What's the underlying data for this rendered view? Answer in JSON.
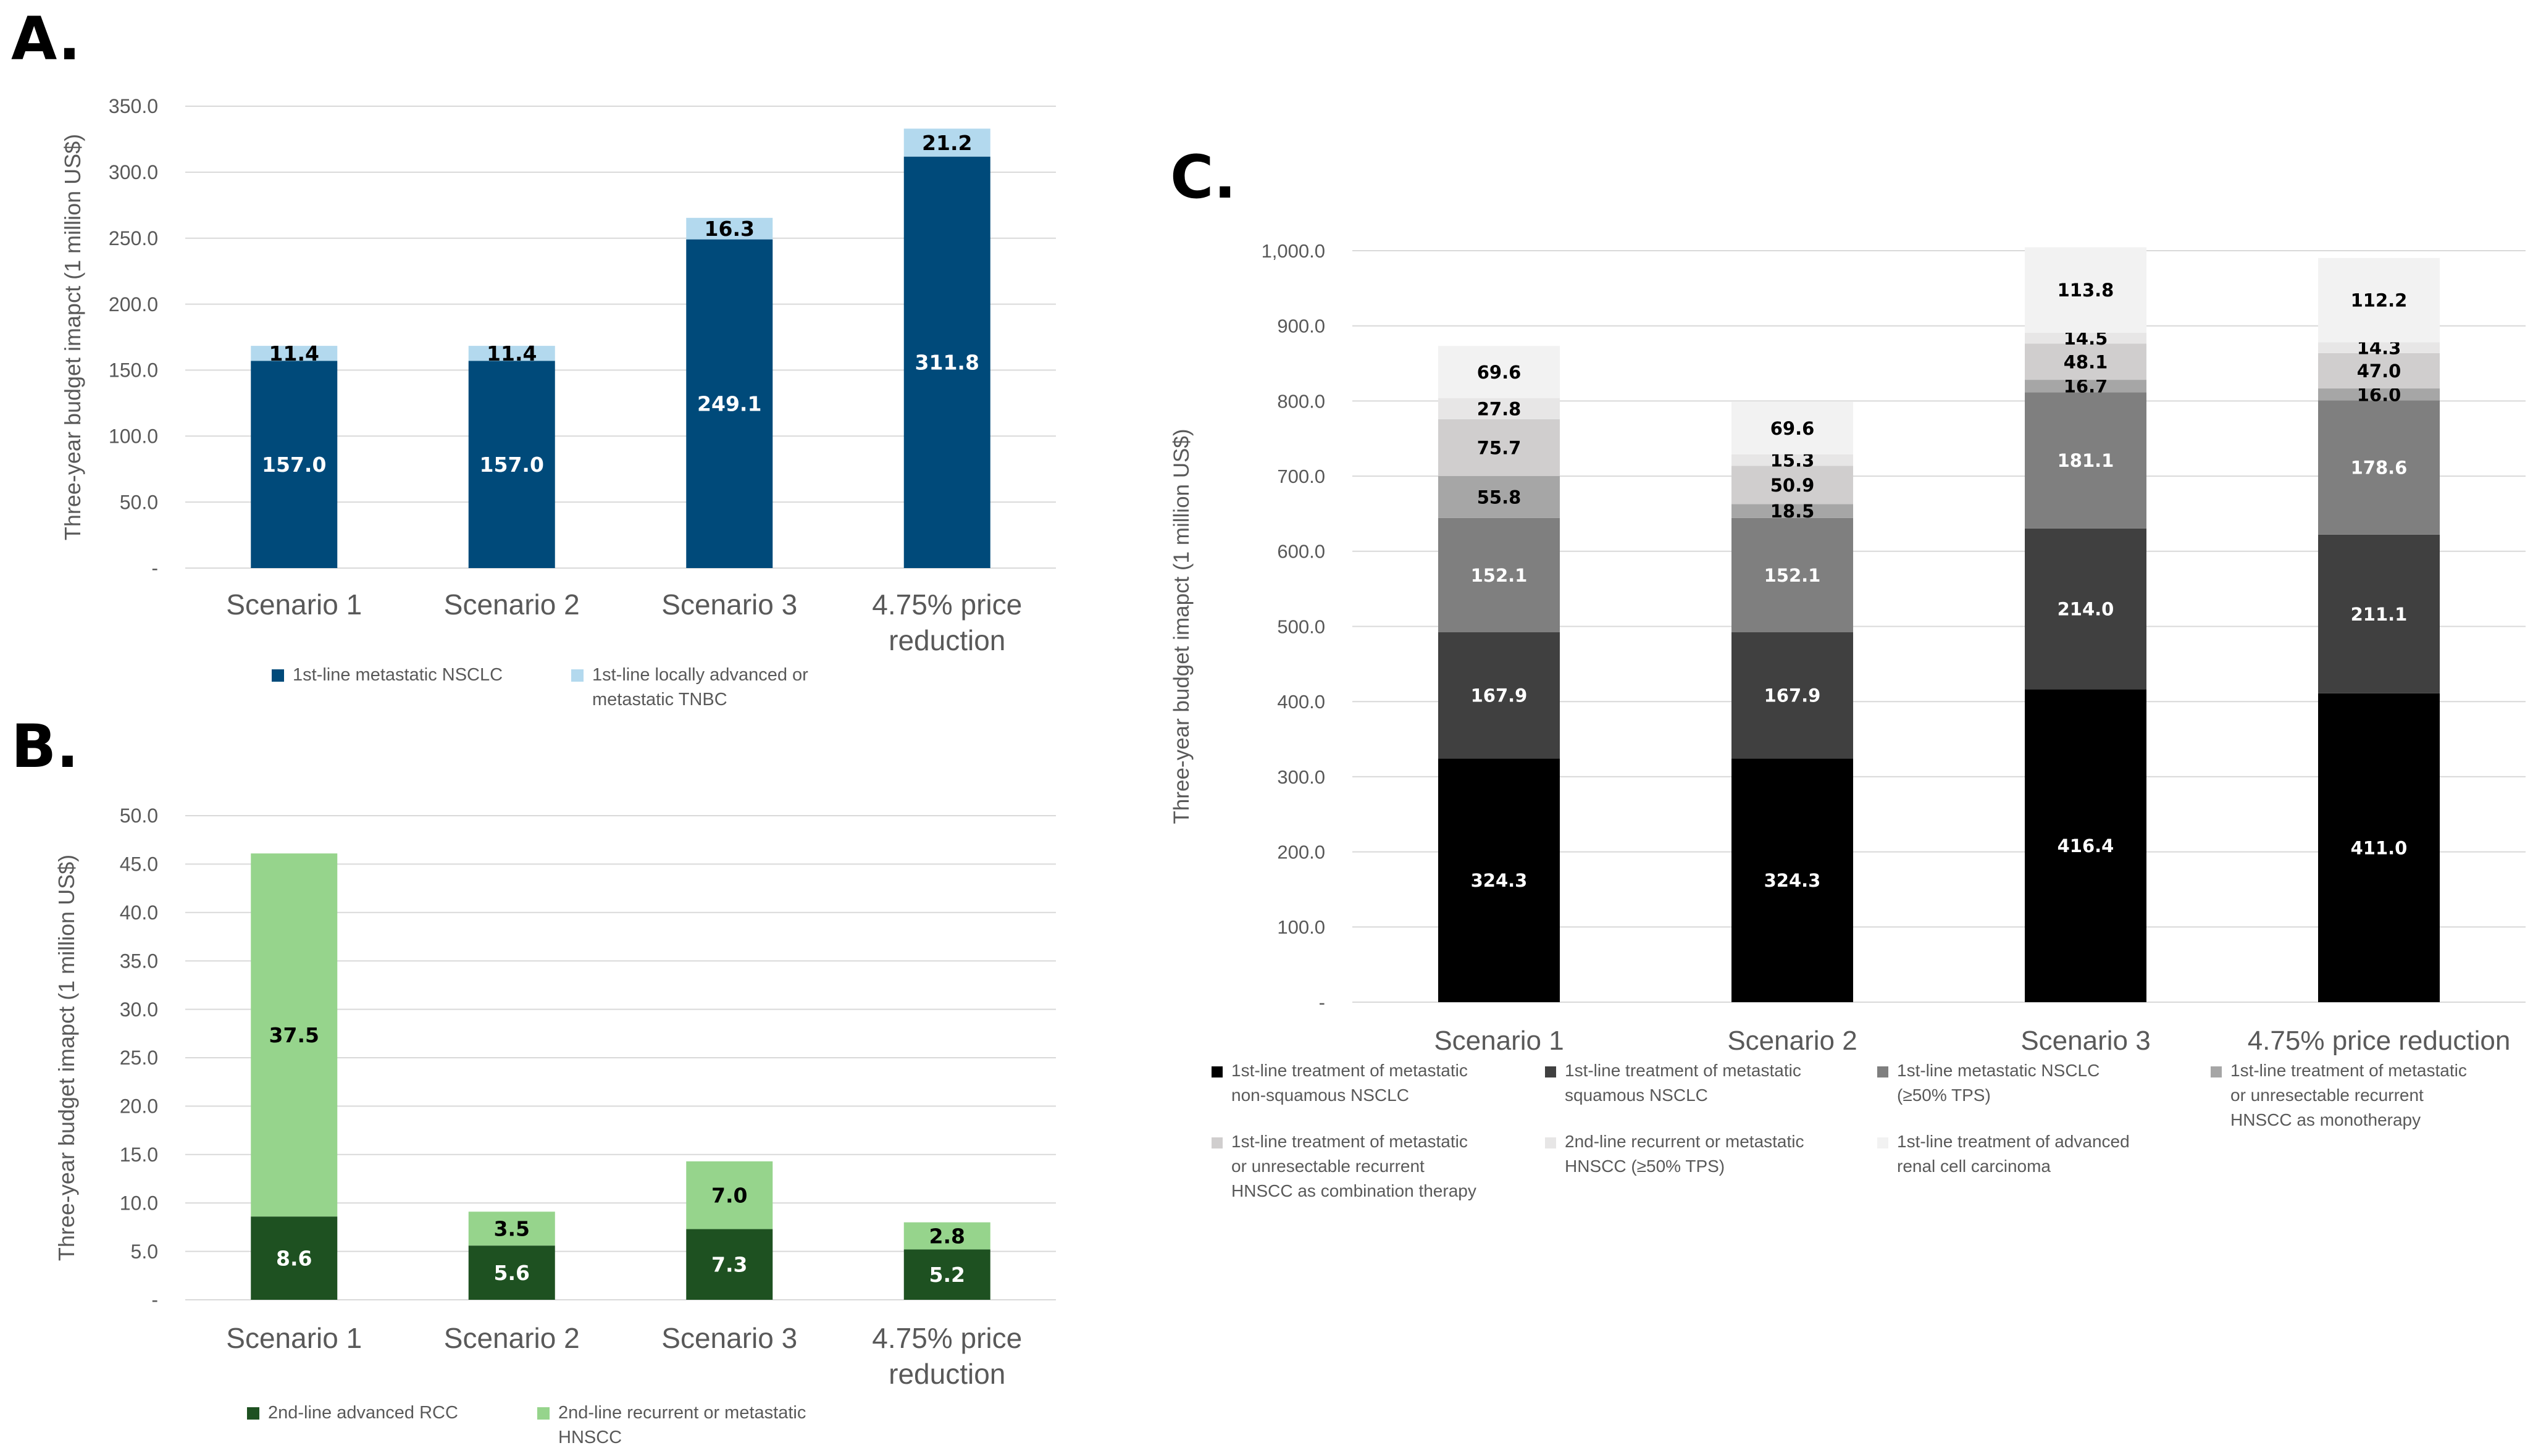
{
  "chart_data": [
    {
      "panel": "A.",
      "type": "bar",
      "stacked": true,
      "ylabel": "Three-year budget imapct (1 million US$)",
      "ylim": [
        0,
        350
      ],
      "yticks": [
        "-",
        "50.0",
        "100.0",
        "150.0",
        "200.0",
        "250.0",
        "300.0",
        "350.0"
      ],
      "categories": [
        [
          "Scenario 1"
        ],
        [
          "Scenario 2"
        ],
        [
          "Scenario 3"
        ],
        [
          "4.75% price",
          "reduction"
        ]
      ],
      "series": [
        {
          "name": [
            "1st-line metastatic NSCLC"
          ],
          "color": "#004a7a",
          "label_color": "#ffffff",
          "values": [
            157.0,
            157.0,
            249.1,
            311.8
          ],
          "labels": [
            "157.0",
            "157.0",
            "249.1",
            "311.8"
          ]
        },
        {
          "name": [
            "1st-line locally advanced or",
            "metastatic TNBC"
          ],
          "color": "#b3d9ee",
          "label_color": "#000000",
          "values": [
            11.4,
            11.4,
            16.3,
            21.2
          ],
          "labels": [
            "11.4",
            "11.4",
            "16.3",
            "21.2"
          ]
        }
      ]
    },
    {
      "panel": "B.",
      "type": "bar",
      "stacked": true,
      "ylabel": "Three-year budget imapct (1 million US$)",
      "ylim": [
        0,
        50
      ],
      "yticks": [
        "-",
        "5.0",
        "10.0",
        "15.0",
        "20.0",
        "25.0",
        "30.0",
        "35.0",
        "40.0",
        "45.0",
        "50.0"
      ],
      "categories": [
        [
          "Scenario 1"
        ],
        [
          "Scenario 2"
        ],
        [
          "Scenario 3"
        ],
        [
          "4.75% price",
          "reduction"
        ]
      ],
      "series": [
        {
          "name": [
            "2nd-line advanced RCC"
          ],
          "color": "#1e5121",
          "label_color": "#ffffff",
          "values": [
            8.6,
            5.6,
            7.3,
            5.2
          ],
          "labels": [
            "8.6",
            "5.6",
            "7.3",
            "5.2"
          ]
        },
        {
          "name": [
            "2nd-line recurrent or metastatic",
            "HNSCC"
          ],
          "color": "#96d48c",
          "label_color": "#000000",
          "values": [
            37.5,
            3.5,
            7.0,
            2.8
          ],
          "labels": [
            "37.5",
            "3.5",
            "7.0",
            "2.8"
          ]
        }
      ]
    },
    {
      "panel": "C.",
      "type": "bar",
      "stacked": true,
      "ylabel": "Three-year budget imapct (1 million US$)",
      "ylim": [
        0,
        1000
      ],
      "yticks": [
        "-",
        "100.0",
        "200.0",
        "300.0",
        "400.0",
        "500.0",
        "600.0",
        "700.0",
        "800.0",
        "900.0",
        "1,000.0"
      ],
      "categories": [
        [
          "Scenario 1"
        ],
        [
          "Scenario 2"
        ],
        [
          "Scenario 3"
        ],
        [
          "4.75% price reduction"
        ]
      ],
      "series": [
        {
          "name": [
            "1st-line treatment of metastatic",
            "non-squamous NSCLC"
          ],
          "color": "#000000",
          "label_color": "#ffffff",
          "values": [
            324.3,
            324.3,
            416.4,
            411.0
          ],
          "labels": [
            "324.3",
            "324.3",
            "416.4",
            "411.0"
          ]
        },
        {
          "name": [
            "1st-line treatment of metastatic",
            "squamous NSCLC"
          ],
          "color": "#404040",
          "label_color": "#ffffff",
          "values": [
            167.9,
            167.9,
            214.0,
            211.1
          ],
          "labels": [
            "167.9",
            "167.9",
            "214.0",
            "211.1"
          ]
        },
        {
          "name": [
            "1st-line metastatic NSCLC",
            "(≥50% TPS)"
          ],
          "color": "#7f7f7f",
          "label_color": "#ffffff",
          "values": [
            152.1,
            152.1,
            181.1,
            178.6
          ],
          "labels": [
            "152.1",
            "152.1",
            "181.1",
            "178.6"
          ]
        },
        {
          "name": [
            "1st-line treatment of metastatic",
            "or unresectable recurrent",
            "HNSCC as monotherapy"
          ],
          "color": "#a6a6a6",
          "label_color": "#000000",
          "values": [
            55.8,
            18.5,
            16.7,
            16.0
          ],
          "labels": [
            "55.8",
            "18.5",
            "16.7",
            "16.0"
          ]
        },
        {
          "name": [
            "1st-line treatment of metastatic",
            "or unresectable recurrent",
            "HNSCC as combination therapy"
          ],
          "color": "#d0cece",
          "label_color": "#000000",
          "values": [
            75.7,
            50.9,
            48.1,
            47.0
          ],
          "labels": [
            "75.7",
            "50.9",
            "48.1",
            "47.0"
          ]
        },
        {
          "name": [
            "2nd-line recurrent or metastatic",
            "HNSCC (≥50% TPS)"
          ],
          "color": "#e7e6e6",
          "label_color": "#000000",
          "values": [
            27.8,
            15.3,
            14.5,
            14.3
          ],
          "labels": [
            "27.8",
            "15.3",
            "14.5",
            "14.3"
          ]
        },
        {
          "name": [
            "1st-line treatment of advanced",
            "renal cell carcinoma"
          ],
          "color": "#f2f2f2",
          "label_color": "#000000",
          "values": [
            69.6,
            69.6,
            113.8,
            112.2
          ],
          "labels": [
            "69.6",
            "69.6",
            "113.8",
            "112.2"
          ]
        }
      ]
    }
  ]
}
